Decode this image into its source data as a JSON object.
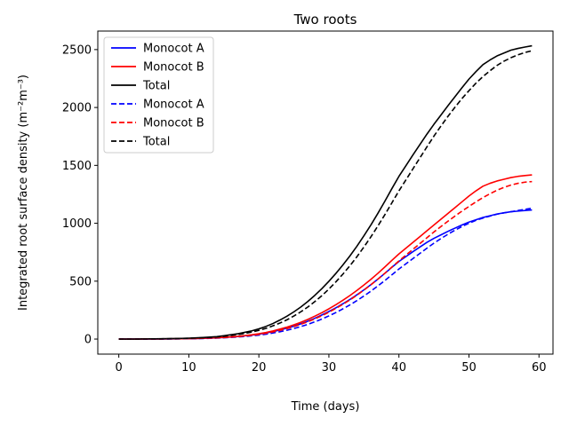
{
  "chart_data": {
    "type": "line",
    "title": "Two roots",
    "xlabel": "Time (days)",
    "ylabel": "Integrated root surface density (m⁻²m⁻³)",
    "xlim": [
      -3,
      62
    ],
    "ylim": [
      -130,
      2660
    ],
    "xticks": [
      0,
      10,
      20,
      30,
      40,
      50,
      60
    ],
    "yticks": [
      0,
      500,
      1000,
      1500,
      2000,
      2500
    ],
    "legend_position": "upper-left",
    "x": [
      0,
      1,
      2,
      3,
      4,
      5,
      6,
      7,
      8,
      9,
      10,
      11,
      12,
      13,
      14,
      15,
      16,
      17,
      18,
      19,
      20,
      21,
      22,
      23,
      24,
      25,
      26,
      27,
      28,
      29,
      30,
      31,
      32,
      33,
      34,
      35,
      36,
      37,
      38,
      39,
      40,
      41,
      42,
      43,
      44,
      45,
      46,
      47,
      48,
      49,
      50,
      51,
      52,
      53,
      54,
      55,
      56,
      57,
      58,
      59
    ],
    "series": [
      {
        "name": "Monocot A",
        "color": "#0000ff",
        "style": "solid",
        "values": [
          0,
          0,
          0,
          0,
          1,
          1,
          1,
          2,
          2,
          3,
          4,
          5,
          6,
          8,
          10,
          14,
          18,
          22,
          28,
          34,
          42,
          52,
          64,
          78,
          94,
          112,
          132,
          155,
          180,
          208,
          238,
          270,
          305,
          342,
          382,
          425,
          470,
          518,
          568,
          620,
          670,
          712,
          755,
          795,
          835,
          870,
          900,
          930,
          958,
          985,
          1010,
          1030,
          1050,
          1065,
          1080,
          1090,
          1100,
          1105,
          1110,
          1115
        ]
      },
      {
        "name": "Monocot B",
        "color": "#ff0000",
        "style": "solid",
        "values": [
          0,
          0,
          0,
          0,
          1,
          1,
          1,
          2,
          3,
          3,
          4,
          5,
          7,
          9,
          11,
          15,
          19,
          24,
          30,
          37,
          46,
          57,
          70,
          86,
          103,
          123,
          145,
          170,
          198,
          228,
          261,
          297,
          335,
          376,
          420,
          467,
          516,
          568,
          623,
          680,
          735,
          785,
          835,
          885,
          935,
          985,
          1035,
          1085,
          1135,
          1185,
          1235,
          1280,
          1320,
          1345,
          1365,
          1380,
          1395,
          1405,
          1412,
          1418
        ]
      },
      {
        "name": "Total",
        "color": "#000000",
        "style": "solid",
        "values": [
          0,
          0,
          0,
          1,
          2,
          2,
          3,
          4,
          5,
          6,
          8,
          10,
          13,
          17,
          21,
          29,
          37,
          46,
          58,
          71,
          88,
          109,
          134,
          164,
          197,
          235,
          277,
          325,
          378,
          436,
          499,
          567,
          640,
          718,
          802,
          892,
          986,
          1086,
          1191,
          1300,
          1405,
          1497,
          1590,
          1680,
          1770,
          1855,
          1935,
          2015,
          2093,
          2170,
          2245,
          2310,
          2370,
          2410,
          2445,
          2470,
          2495,
          2510,
          2522,
          2533
        ]
      },
      {
        "name": "Monocot A",
        "color": "#0000ff",
        "style": "dashed",
        "values": [
          0,
          0,
          0,
          0,
          0,
          1,
          1,
          1,
          2,
          2,
          3,
          4,
          5,
          6,
          8,
          11,
          14,
          18,
          22,
          28,
          34,
          42,
          52,
          63,
          76,
          91,
          108,
          127,
          149,
          173,
          200,
          229,
          261,
          295,
          332,
          372,
          414,
          459,
          506,
          555,
          605,
          650,
          695,
          740,
          785,
          828,
          868,
          905,
          940,
          972,
          1000,
          1025,
          1045,
          1062,
          1078,
          1090,
          1100,
          1110,
          1120,
          1130
        ]
      },
      {
        "name": "Monocot B",
        "color": "#ff0000",
        "style": "dashed",
        "values": [
          0,
          0,
          0,
          0,
          1,
          1,
          1,
          2,
          2,
          3,
          4,
          5,
          6,
          8,
          10,
          13,
          17,
          21,
          27,
          33,
          41,
          50,
          62,
          75,
          90,
          108,
          128,
          150,
          175,
          202,
          232,
          265,
          300,
          338,
          379,
          423,
          469,
          518,
          569,
          622,
          675,
          725,
          775,
          825,
          875,
          925,
          972,
          1018,
          1062,
          1105,
          1145,
          1185,
          1222,
          1255,
          1285,
          1310,
          1330,
          1345,
          1355,
          1360
        ]
      },
      {
        "name": "Total",
        "color": "#000000",
        "style": "dashed",
        "values": [
          0,
          0,
          0,
          0,
          1,
          2,
          2,
          3,
          4,
          5,
          7,
          9,
          11,
          14,
          18,
          24,
          31,
          39,
          49,
          61,
          75,
          92,
          114,
          138,
          166,
          199,
          236,
          277,
          324,
          375,
          432,
          494,
          561,
          633,
          711,
          795,
          883,
          977,
          1075,
          1177,
          1280,
          1375,
          1470,
          1565,
          1660,
          1753,
          1840,
          1923,
          2002,
          2077,
          2145,
          2210,
          2267,
          2317,
          2363,
          2400,
          2430,
          2455,
          2475,
          2490
        ]
      }
    ]
  }
}
